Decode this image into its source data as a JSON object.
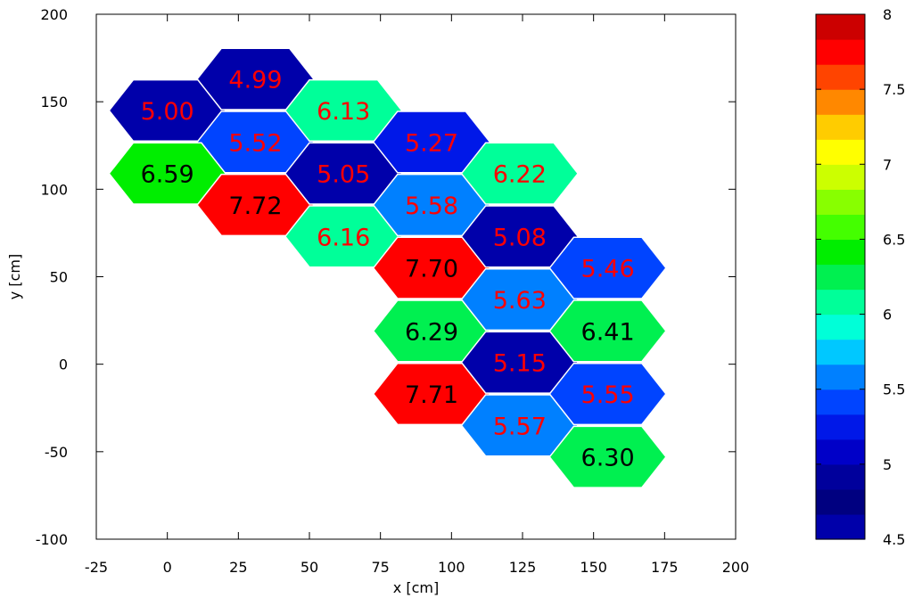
{
  "chart_data": {
    "type": "heatmap",
    "title": "",
    "xlabel": "x [cm]",
    "ylabel": "y [cm]",
    "xlim": [
      -25,
      200
    ],
    "ylim": [
      -100,
      200
    ],
    "x_ticks": [
      "-25",
      "0",
      "25",
      "50",
      "75",
      "100",
      "125",
      "150",
      "175",
      "200"
    ],
    "y_ticks": [
      "-100",
      "-50",
      "0",
      "50",
      "100",
      "150",
      "200"
    ],
    "colorbar": {
      "range": [
        4.5,
        8
      ],
      "tick_labels": [
        "4.5",
        "5",
        "5.5",
        "6",
        "6.5",
        "7",
        "7.5",
        "8"
      ],
      "colors": [
        "#0000aa",
        "#000080",
        "#00009c",
        "#0000c8",
        "#0018e8",
        "#0044ff",
        "#0080ff",
        "#00c8ff",
        "#00ffd8",
        "#00ff99",
        "#00f050",
        "#00ee00",
        "#44ff00",
        "#88ff00",
        "#ccff00",
        "#ffff00",
        "#ffcc00",
        "#ff8800",
        "#ff4400",
        "#ff0000",
        "#cc0000"
      ]
    },
    "cells": [
      {
        "x": 0,
        "y": 145,
        "label": "5.00",
        "color": "#0000aa",
        "text_color": "#ff0000"
      },
      {
        "x": 31,
        "y": 163,
        "label": "4.99",
        "color": "#0000aa",
        "text_color": "#ff0000"
      },
      {
        "x": 31,
        "y": 127,
        "label": "5.52",
        "color": "#0044ff",
        "text_color": "#ff0000"
      },
      {
        "x": 0,
        "y": 109,
        "label": "6.59",
        "color": "#00ee00",
        "text_color": "#000000"
      },
      {
        "x": 31,
        "y": 91,
        "label": "7.72",
        "color": "#ff0000",
        "text_color": "#000000"
      },
      {
        "x": 62,
        "y": 145,
        "label": "6.13",
        "color": "#00ff99",
        "text_color": "#ff0000"
      },
      {
        "x": 62,
        "y": 109,
        "label": "5.05",
        "color": "#0000aa",
        "text_color": "#ff0000"
      },
      {
        "x": 62,
        "y": 73,
        "label": "6.16",
        "color": "#00ff99",
        "text_color": "#ff0000"
      },
      {
        "x": 93,
        "y": 127,
        "label": "5.27",
        "color": "#0018e8",
        "text_color": "#ff0000"
      },
      {
        "x": 93,
        "y": 91,
        "label": "5.58",
        "color": "#0080ff",
        "text_color": "#ff0000"
      },
      {
        "x": 93,
        "y": 55,
        "label": "7.70",
        "color": "#ff0000",
        "text_color": "#000000"
      },
      {
        "x": 93,
        "y": 19,
        "label": "6.29",
        "color": "#00f050",
        "text_color": "#000000"
      },
      {
        "x": 93,
        "y": -17,
        "label": "7.71",
        "color": "#ff0000",
        "text_color": "#000000"
      },
      {
        "x": 124,
        "y": 109,
        "label": "6.22",
        "color": "#00ff99",
        "text_color": "#ff0000"
      },
      {
        "x": 124,
        "y": 73,
        "label": "5.08",
        "color": "#0000aa",
        "text_color": "#ff0000"
      },
      {
        "x": 124,
        "y": 37,
        "label": "5.63",
        "color": "#0080ff",
        "text_color": "#ff0000"
      },
      {
        "x": 124,
        "y": 1,
        "label": "5.15",
        "color": "#0000aa",
        "text_color": "#ff0000"
      },
      {
        "x": 124,
        "y": -35,
        "label": "5.57",
        "color": "#0080ff",
        "text_color": "#ff0000"
      },
      {
        "x": 155,
        "y": 55,
        "label": "5.46",
        "color": "#0044ff",
        "text_color": "#ff0000"
      },
      {
        "x": 155,
        "y": 19,
        "label": "6.41",
        "color": "#00f050",
        "text_color": "#000000"
      },
      {
        "x": 155,
        "y": -17,
        "label": "5.55",
        "color": "#0044ff",
        "text_color": "#ff0000"
      },
      {
        "x": 155,
        "y": -53,
        "label": "6.30",
        "color": "#00f050",
        "text_color": "#000000"
      }
    ]
  }
}
